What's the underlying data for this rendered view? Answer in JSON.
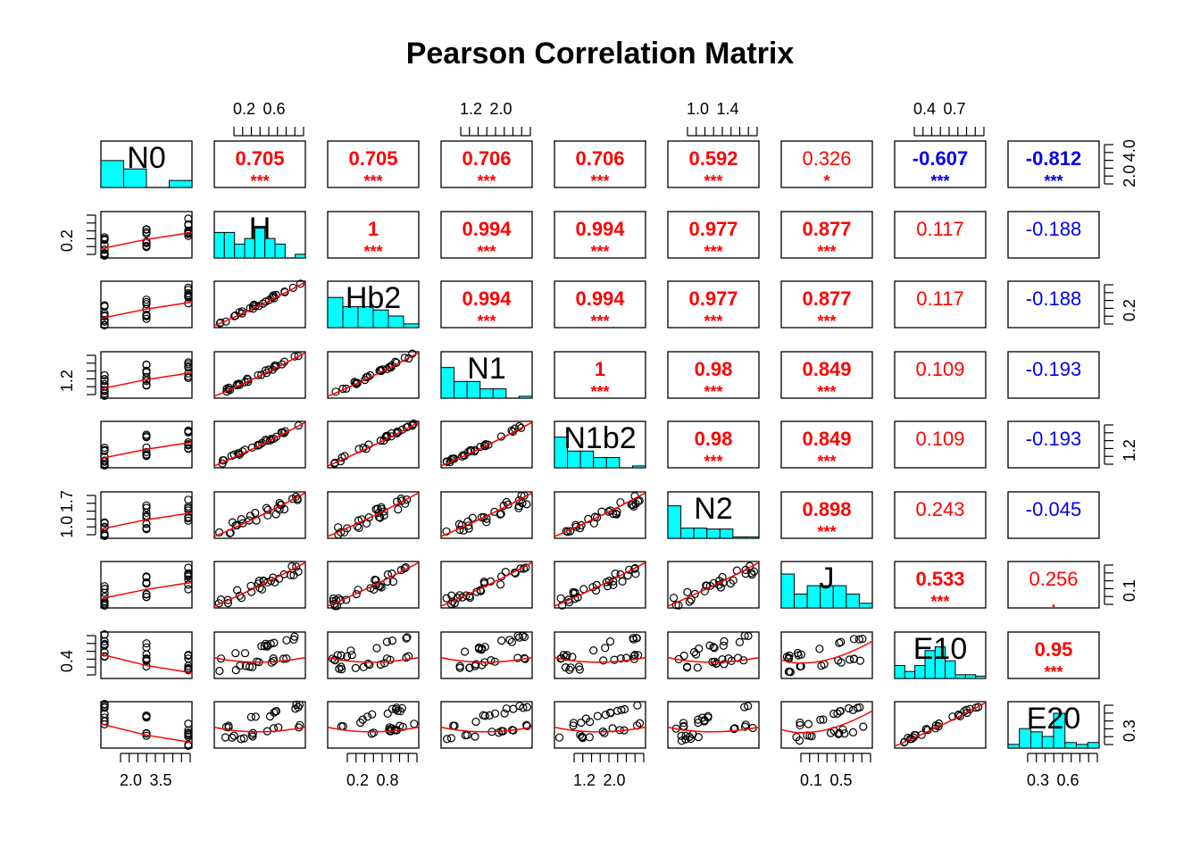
{
  "chart_data": {
    "type": "scatter",
    "title": "Pearson Correlation Matrix",
    "variables": [
      "N0",
      "H",
      "Hb2",
      "N1",
      "N1b2",
      "N2",
      "J",
      "E10",
      "E20"
    ],
    "upper_panels": [
      [
        0,
        1,
        "0.705",
        "***",
        true
      ],
      [
        0,
        2,
        "0.705",
        "***",
        true
      ],
      [
        0,
        3,
        "0.706",
        "***",
        true
      ],
      [
        0,
        4,
        "0.706",
        "***",
        true
      ],
      [
        0,
        5,
        "0.592",
        "***",
        true
      ],
      [
        0,
        6,
        "0.326",
        "*",
        false
      ],
      [
        0,
        7,
        "-0.607",
        "***",
        true
      ],
      [
        0,
        8,
        "-0.812",
        "***",
        true
      ],
      [
        1,
        2,
        "1",
        "***",
        true
      ],
      [
        1,
        3,
        "0.994",
        "***",
        true
      ],
      [
        1,
        4,
        "0.994",
        "***",
        true
      ],
      [
        1,
        5,
        "0.977",
        "***",
        true
      ],
      [
        1,
        6,
        "0.877",
        "***",
        true
      ],
      [
        1,
        7,
        "0.117",
        "",
        false
      ],
      [
        1,
        8,
        "-0.188",
        "",
        false
      ],
      [
        2,
        3,
        "0.994",
        "***",
        true
      ],
      [
        2,
        4,
        "0.994",
        "***",
        true
      ],
      [
        2,
        5,
        "0.977",
        "***",
        true
      ],
      [
        2,
        6,
        "0.877",
        "***",
        true
      ],
      [
        2,
        7,
        "0.117",
        "",
        false
      ],
      [
        2,
        8,
        "-0.188",
        "",
        false
      ],
      [
        3,
        4,
        "1",
        "***",
        true
      ],
      [
        3,
        5,
        "0.98",
        "***",
        true
      ],
      [
        3,
        6,
        "0.849",
        "***",
        true
      ],
      [
        3,
        7,
        "0.109",
        "",
        false
      ],
      [
        3,
        8,
        "-0.193",
        "",
        false
      ],
      [
        4,
        5,
        "0.98",
        "***",
        true
      ],
      [
        4,
        6,
        "0.849",
        "***",
        true
      ],
      [
        4,
        7,
        "0.109",
        "",
        false
      ],
      [
        4,
        8,
        "-0.193",
        "",
        false
      ],
      [
        5,
        6,
        "0.898",
        "***",
        true
      ],
      [
        5,
        7,
        "0.243",
        "",
        false
      ],
      [
        5,
        8,
        "-0.045",
        "",
        false
      ],
      [
        6,
        7,
        "0.533",
        "***",
        true
      ],
      [
        6,
        8,
        "0.256",
        ".",
        false
      ],
      [
        7,
        8,
        "0.95",
        "***",
        true
      ]
    ],
    "axis_ticks": {
      "top": [
        {
          "var": 1,
          "labels": [
            "0.2",
            "0.6"
          ]
        },
        {
          "var": 3,
          "labels": [
            "1.2",
            "2.0"
          ]
        },
        {
          "var": 5,
          "labels": [
            "1.0",
            "1.4"
          ]
        },
        {
          "var": 7,
          "labels": [
            "0.4",
            "0.7"
          ]
        }
      ],
      "bottom": [
        {
          "var": 0,
          "labels": [
            "2.0",
            "3.5"
          ]
        },
        {
          "var": 2,
          "labels": [
            "0.2",
            "0.8"
          ]
        },
        {
          "var": 4,
          "labels": [
            "1.2",
            "2.0"
          ]
        },
        {
          "var": 6,
          "labels": [
            "0.1",
            "0.5"
          ]
        },
        {
          "var": 8,
          "labels": [
            "0.3",
            "0.6"
          ]
        }
      ],
      "left": [
        {
          "var": 1,
          "labels": [
            "0.2"
          ]
        },
        {
          "var": 3,
          "labels": [
            "1.2"
          ]
        },
        {
          "var": 5,
          "labels": [
            "1.0",
            "1.7"
          ]
        },
        {
          "var": 7,
          "labels": [
            "0.4"
          ]
        }
      ],
      "right": [
        {
          "var": 0,
          "labels": [
            "2.0",
            "4.0"
          ]
        },
        {
          "var": 2,
          "labels": [
            "0.2"
          ]
        },
        {
          "var": 4,
          "labels": [
            "1.2"
          ]
        },
        {
          "var": 6,
          "labels": [
            "0.1"
          ]
        },
        {
          "var": 8,
          "labels": [
            "0.3"
          ]
        }
      ]
    },
    "histograms": [
      [
        0.58,
        0.4,
        0.0,
        0.15
      ],
      [
        0.55,
        0.55,
        0.3,
        0.42,
        0.68,
        0.42,
        0.3,
        0.0,
        0.08
      ],
      [
        0.65,
        0.45,
        0.45,
        0.38,
        0.25,
        0.08
      ],
      [
        0.66,
        0.36,
        0.36,
        0.2,
        0.2,
        0.0,
        0.04
      ],
      [
        0.66,
        0.36,
        0.36,
        0.22,
        0.22,
        0.0,
        0.04
      ],
      [
        0.7,
        0.22,
        0.22,
        0.2,
        0.2,
        0.03,
        0.03
      ],
      [
        0.73,
        0.3,
        0.48,
        0.48,
        0.48,
        0.3,
        0.1
      ],
      [
        0.28,
        0.15,
        0.28,
        0.6,
        0.68,
        0.38,
        0.08,
        0.08,
        0.05
      ],
      [
        0.08,
        0.42,
        0.35,
        0.25,
        0.75,
        0.12,
        0.08,
        0.12
      ]
    ],
    "colors": {
      "positive": "#ff0000",
      "negative": "#0000ee",
      "histogram_fill": "#00ffff",
      "smooth_line": "#ff0000",
      "points": "#000000"
    }
  }
}
